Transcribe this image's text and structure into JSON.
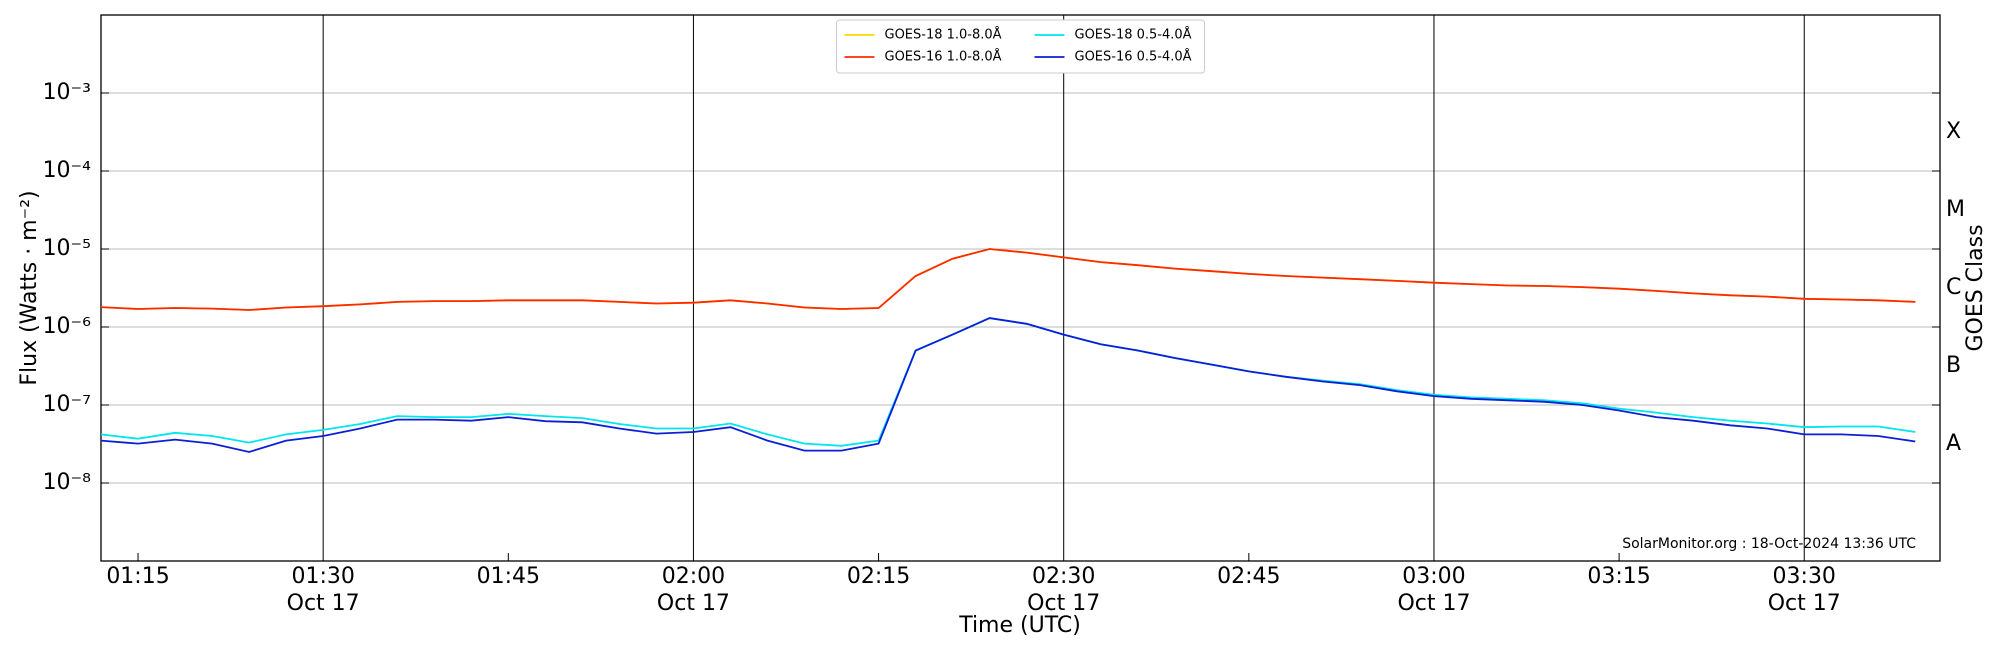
{
  "chart_data": {
    "type": "line",
    "xlabel": "Time (UTC)",
    "ylabel": "Flux (Watts · m⁻²)",
    "y2label": "GOES Class",
    "annotation": "SolarMonitor.org : 18-Oct-2024 13:36 UTC",
    "log_y": true,
    "grid": true,
    "legend": "upper center",
    "xlim": [
      "01:12",
      "03:41"
    ],
    "ylim": [
      1e-09,
      0.01
    ],
    "y2lim": [
      1e-09,
      0.01
    ],
    "yticks": [
      {
        "value": 1e-08,
        "label": "10⁻⁸"
      },
      {
        "value": 1e-07,
        "label": "10⁻⁷"
      },
      {
        "value": 1e-06,
        "label": "10⁻⁶"
      },
      {
        "value": 1e-05,
        "label": "10⁻⁵"
      },
      {
        "value": 0.0001,
        "label": "10⁻⁴"
      },
      {
        "value": 0.001,
        "label": "10⁻³"
      }
    ],
    "y2ticks": [
      {
        "value": 3.16e-08,
        "label": "A"
      },
      {
        "value": 3.16e-07,
        "label": "B"
      },
      {
        "value": 3.16e-06,
        "label": "C"
      },
      {
        "value": 3.16e-05,
        "label": "M"
      },
      {
        "value": 0.000316,
        "label": "X"
      }
    ],
    "xticks": [
      {
        "value": "01:30",
        "label": [
          "01:30",
          "Oct 17"
        ]
      },
      {
        "value": "02:00",
        "label": [
          "02:00",
          "Oct 17"
        ]
      },
      {
        "value": "02:30",
        "label": [
          "02:30",
          "Oct 17"
        ]
      },
      {
        "value": "03:00",
        "label": [
          "03:00",
          "Oct 17"
        ]
      },
      {
        "value": "03:30",
        "label": [
          "03:30",
          "Oct 17"
        ]
      }
    ],
    "xminorticks": [
      "01:15",
      "01:45",
      "02:15",
      "02:45",
      "03:15"
    ],
    "x": [
      "01:12",
      "01:15",
      "01:18",
      "01:21",
      "01:24",
      "01:27",
      "01:30",
      "01:33",
      "01:36",
      "01:39",
      "01:42",
      "01:45",
      "01:48",
      "01:51",
      "01:54",
      "01:57",
      "02:00",
      "02:03",
      "02:06",
      "02:09",
      "02:12",
      "02:15",
      "02:18",
      "02:21",
      "02:24",
      "02:27",
      "02:30",
      "02:33",
      "02:36",
      "02:39",
      "02:42",
      "02:45",
      "02:48",
      "02:51",
      "02:54",
      "02:57",
      "03:00",
      "03:03",
      "03:06",
      "03:09",
      "03:12",
      "03:15",
      "03:18",
      "03:21",
      "03:24",
      "03:27",
      "03:30",
      "03:33",
      "03:36",
      "03:39"
    ],
    "series": [
      {
        "name": "GOES-18 1.0-8.0Å",
        "color": "#ffd700",
        "values": [
          1.8e-06,
          1.7e-06,
          1.75e-06,
          1.72e-06,
          1.65e-06,
          1.78e-06,
          1.85e-06,
          1.95e-06,
          2.1e-06,
          2.15e-06,
          2.15e-06,
          2.2e-06,
          2.2e-06,
          2.2e-06,
          2.1e-06,
          2e-06,
          2.05e-06,
          2.2e-06,
          2e-06,
          1.78e-06,
          1.7e-06,
          1.75e-06,
          4.5e-06,
          7.5e-06,
          1e-05,
          9e-06,
          7.8e-06,
          6.8e-06,
          6.2e-06,
          5.6e-06,
          5.2e-06,
          4.8e-06,
          4.5e-06,
          4.3e-06,
          4.1e-06,
          3.9e-06,
          3.7e-06,
          3.55e-06,
          3.4e-06,
          3.35e-06,
          3.25e-06,
          3.1e-06,
          2.9e-06,
          2.7e-06,
          2.55e-06,
          2.45e-06,
          2.3e-06,
          2.25e-06,
          2.2e-06,
          2.1e-06
        ]
      },
      {
        "name": "GOES-16 1.0-8.0Å",
        "color": "#ff2a00",
        "values": [
          1.8e-06,
          1.7e-06,
          1.75e-06,
          1.72e-06,
          1.65e-06,
          1.78e-06,
          1.85e-06,
          1.95e-06,
          2.1e-06,
          2.15e-06,
          2.15e-06,
          2.2e-06,
          2.2e-06,
          2.2e-06,
          2.1e-06,
          2e-06,
          2.05e-06,
          2.2e-06,
          2e-06,
          1.78e-06,
          1.7e-06,
          1.75e-06,
          4.5e-06,
          7.5e-06,
          1e-05,
          9e-06,
          7.8e-06,
          6.8e-06,
          6.2e-06,
          5.6e-06,
          5.2e-06,
          4.8e-06,
          4.5e-06,
          4.3e-06,
          4.1e-06,
          3.9e-06,
          3.7e-06,
          3.55e-06,
          3.4e-06,
          3.35e-06,
          3.25e-06,
          3.1e-06,
          2.9e-06,
          2.7e-06,
          2.55e-06,
          2.45e-06,
          2.3e-06,
          2.25e-06,
          2.2e-06,
          2.1e-06
        ]
      },
      {
        "name": "GOES-18 0.5-4.0Å",
        "color": "#00e5ee",
        "values": [
          4.2e-08,
          3.7e-08,
          4.4e-08,
          4e-08,
          3.3e-08,
          4.2e-08,
          4.8e-08,
          5.7e-08,
          7.2e-08,
          7e-08,
          7e-08,
          7.7e-08,
          7.2e-08,
          6.8e-08,
          5.7e-08,
          5e-08,
          5e-08,
          5.8e-08,
          4.2e-08,
          3.2e-08,
          3e-08,
          3.5e-08,
          5e-07,
          8e-07,
          1.3e-06,
          1.1e-06,
          8e-07,
          6e-07,
          5e-07,
          4e-07,
          3.3e-07,
          2.7e-07,
          2.3e-07,
          2.05e-07,
          1.85e-07,
          1.55e-07,
          1.35e-07,
          1.25e-07,
          1.2e-07,
          1.15e-07,
          1.05e-07,
          9e-08,
          8e-08,
          7e-08,
          6.3e-08,
          5.8e-08,
          5.2e-08,
          5.3e-08,
          5.3e-08,
          4.5e-08
        ]
      },
      {
        "name": "GOES-16 0.5-4.0Å",
        "color": "#0a1fd6",
        "values": [
          3.5e-08,
          3.2e-08,
          3.6e-08,
          3.2e-08,
          2.5e-08,
          3.5e-08,
          4e-08,
          5e-08,
          6.5e-08,
          6.5e-08,
          6.3e-08,
          7e-08,
          6.2e-08,
          6e-08,
          5e-08,
          4.3e-08,
          4.5e-08,
          5.2e-08,
          3.5e-08,
          2.6e-08,
          2.6e-08,
          3.2e-08,
          5e-07,
          8e-07,
          1.3e-06,
          1.1e-06,
          8e-07,
          6e-07,
          5e-07,
          4e-07,
          3.3e-07,
          2.7e-07,
          2.3e-07,
          2e-07,
          1.8e-07,
          1.5e-07,
          1.3e-07,
          1.2e-07,
          1.15e-07,
          1.1e-07,
          1e-07,
          8.5e-08,
          7e-08,
          6.3e-08,
          5.5e-08,
          5e-08,
          4.2e-08,
          4.2e-08,
          4e-08,
          3.4e-08
        ]
      }
    ]
  }
}
